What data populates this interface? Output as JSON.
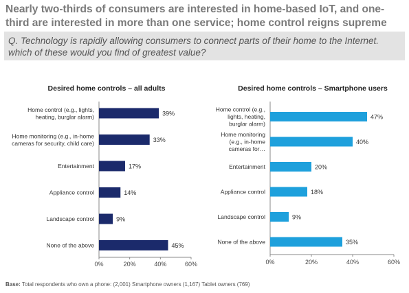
{
  "headline": "Nearly two-thirds of consumers are interested in home-based IoT, and one-third are interested in more than one service; home control reigns supreme",
  "question": "Q. Technology is rapidly allowing consumers to connect parts of their home to the Internet. which of these would you find of greatest value?",
  "base": {
    "label": "Base:",
    "text": " Total respondents who own a phone: (2,001) Smartphone owners (1,167) Tablet owners (769)"
  },
  "chart_data": [
    {
      "type": "bar",
      "orientation": "horizontal",
      "title": "Desired home controls – all adults",
      "categories": [
        [
          "Home control (e.g., lights,",
          "heating, burglar alarm)"
        ],
        [
          "Home monitoring (e.g., in-home",
          "cameras for security, child care)"
        ],
        [
          "Entertainment"
        ],
        [
          "Appliance control"
        ],
        [
          "Landscape control"
        ],
        [
          "None of the above"
        ]
      ],
      "values": [
        39,
        33,
        17,
        14,
        9,
        45
      ],
      "value_labels": [
        "39%",
        "33%",
        "17%",
        "14%",
        "9%",
        "45%"
      ],
      "xlim": [
        0,
        60
      ],
      "xticks": [
        "0%",
        "20%",
        "40%",
        "60%"
      ],
      "tick_values": [
        0,
        20,
        40,
        60
      ],
      "color": "#1b2a6b",
      "grid": false
    },
    {
      "type": "bar",
      "orientation": "horizontal",
      "title": "Desired home controls – Smartphone users",
      "categories": [
        [
          "Home control (e.g.,",
          "lights, heating,",
          "burglar alarm)"
        ],
        [
          "Home monitoring",
          "(e.g., in-home",
          "cameras for…"
        ],
        [
          "Entertainment"
        ],
        [
          "Appliance control"
        ],
        [
          "Landscape control"
        ],
        [
          "None of the above"
        ]
      ],
      "values": [
        47,
        40,
        20,
        18,
        9,
        35
      ],
      "value_labels": [
        "47%",
        "40%",
        "20%",
        "18%",
        "9%",
        "35%"
      ],
      "xlim": [
        0,
        60
      ],
      "xticks": [
        "0%",
        "20%",
        "40%",
        "60%"
      ],
      "tick_values": [
        0,
        20,
        40,
        60
      ],
      "color": "#1ea0dc",
      "grid": false
    }
  ]
}
